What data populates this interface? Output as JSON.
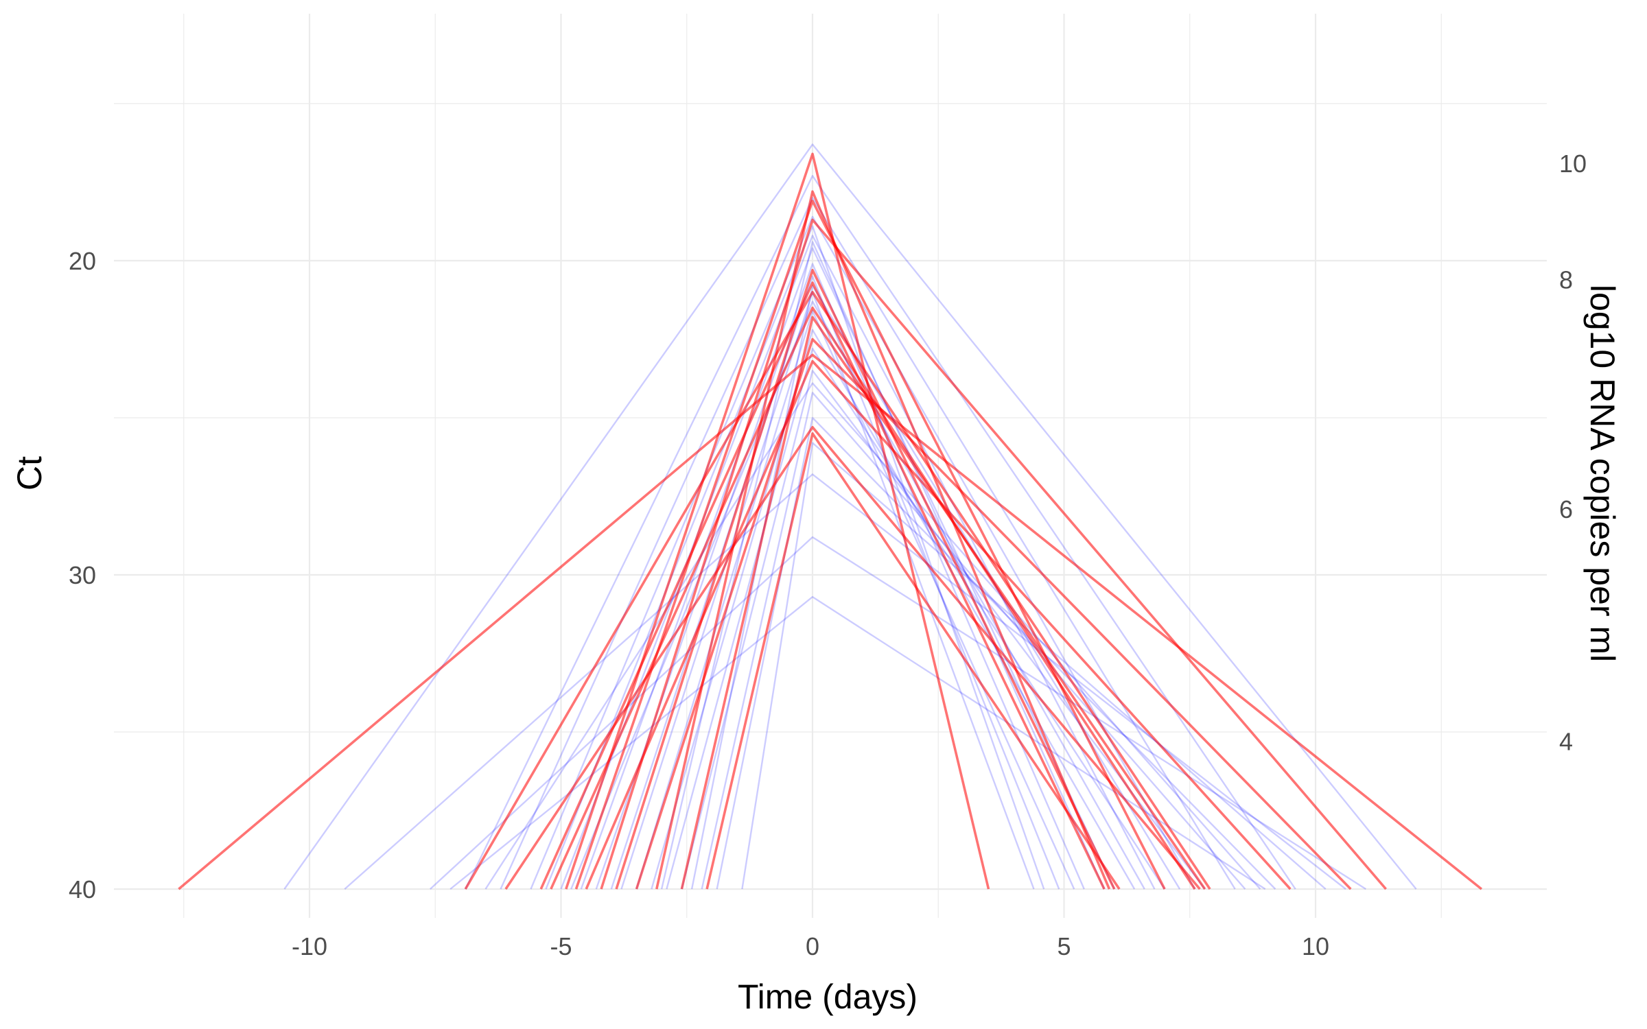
{
  "chart_data": {
    "type": "line",
    "xlabel": "Time (days)",
    "ylabel": "Ct",
    "y2label": "log10 RNA copies per ml",
    "xlim": [
      -13.3,
      14.2
    ],
    "ylim": [
      14.8,
      41
    ],
    "y_reversed": true,
    "x_ticks": [
      -10,
      -5,
      0,
      5,
      10
    ],
    "x_tick_labels": [
      "-10",
      "-5",
      "0",
      "5",
      "10"
    ],
    "y_ticks": [
      20,
      30,
      40
    ],
    "y_tick_labels": [
      "20",
      "30",
      "40"
    ],
    "y2_ticks": [
      10,
      8,
      6,
      4
    ],
    "y2_tick_labels": [
      "10",
      "8",
      "6",
      "4"
    ],
    "y2_ct_at_log10": {
      "10": 16.9,
      "8": 20.6,
      "6": 27.9,
      "4": 35.3
    },
    "grid": true,
    "colors": {
      "blue": "#0000ff",
      "red": "#ff0000",
      "grid": "#ebebeb"
    },
    "series": [
      {
        "group": "blue",
        "values": [
          [
            -10.5,
            40
          ],
          [
            0,
            16.3
          ],
          [
            12,
            40
          ]
        ]
      },
      {
        "group": "blue",
        "values": [
          [
            -9.3,
            40
          ],
          [
            0,
            26.8
          ],
          [
            10.6,
            40
          ]
        ]
      },
      {
        "group": "blue",
        "values": [
          [
            -7.6,
            40
          ],
          [
            0,
            28.8
          ],
          [
            11.0,
            40
          ]
        ]
      },
      {
        "group": "blue",
        "values": [
          [
            -7.2,
            40
          ],
          [
            0,
            30.7
          ],
          [
            9.0,
            40
          ]
        ]
      },
      {
        "group": "blue",
        "values": [
          [
            -6.9,
            40
          ],
          [
            0,
            17.3
          ],
          [
            9.6,
            40
          ]
        ]
      },
      {
        "group": "blue",
        "values": [
          [
            -6.2,
            40
          ],
          [
            0,
            18.0
          ],
          [
            8.4,
            40
          ]
        ]
      },
      {
        "group": "blue",
        "values": [
          [
            -5.6,
            40
          ],
          [
            0,
            18.6
          ],
          [
            7.6,
            40
          ]
        ]
      },
      {
        "group": "blue",
        "values": [
          [
            -5.0,
            40
          ],
          [
            0,
            19.2
          ],
          [
            6.8,
            40
          ]
        ]
      },
      {
        "group": "blue",
        "values": [
          [
            -4.6,
            40
          ],
          [
            0,
            19.6
          ],
          [
            6.0,
            40
          ]
        ]
      },
      {
        "group": "blue",
        "values": [
          [
            -4.3,
            40
          ],
          [
            0,
            20.1
          ],
          [
            5.4,
            40
          ]
        ]
      },
      {
        "group": "blue",
        "values": [
          [
            -4.0,
            40
          ],
          [
            0,
            20.5
          ],
          [
            4.9,
            40
          ]
        ]
      },
      {
        "group": "blue",
        "values": [
          [
            -3.8,
            40
          ],
          [
            0,
            21.0
          ],
          [
            4.4,
            40
          ]
        ]
      },
      {
        "group": "blue",
        "values": [
          [
            -3.5,
            40
          ],
          [
            0,
            21.6
          ],
          [
            5.2,
            40
          ]
        ]
      },
      {
        "group": "blue",
        "values": [
          [
            -3.2,
            40
          ],
          [
            0,
            22.2
          ],
          [
            6.4,
            40
          ]
        ]
      },
      {
        "group": "blue",
        "values": [
          [
            -2.9,
            40
          ],
          [
            0,
            22.8
          ],
          [
            7.0,
            40
          ]
        ]
      },
      {
        "group": "blue",
        "values": [
          [
            -2.6,
            40
          ],
          [
            0,
            23.5
          ],
          [
            7.8,
            40
          ]
        ]
      },
      {
        "group": "blue",
        "values": [
          [
            -2.2,
            40
          ],
          [
            0,
            24.2
          ],
          [
            8.6,
            40
          ]
        ]
      },
      {
        "group": "blue",
        "values": [
          [
            -1.9,
            40
          ],
          [
            0,
            25.0
          ],
          [
            9.2,
            40
          ]
        ]
      },
      {
        "group": "blue",
        "values": [
          [
            -1.4,
            40
          ],
          [
            0,
            25.8
          ],
          [
            10.2,
            40
          ]
        ]
      },
      {
        "group": "blue",
        "values": [
          [
            -5.3,
            40
          ],
          [
            0,
            18.9
          ],
          [
            4.6,
            40
          ]
        ]
      },
      {
        "group": "blue",
        "values": [
          [
            -3.0,
            40
          ],
          [
            0,
            19.4
          ],
          [
            5.8,
            40
          ]
        ]
      },
      {
        "group": "blue",
        "values": [
          [
            -4.8,
            40
          ],
          [
            0,
            21.3
          ],
          [
            6.6,
            40
          ]
        ]
      },
      {
        "group": "blue",
        "values": [
          [
            -2.4,
            40
          ],
          [
            0,
            20.8
          ],
          [
            7.3,
            40
          ]
        ]
      },
      {
        "group": "blue",
        "values": [
          [
            -6.5,
            40
          ],
          [
            0,
            23.9
          ],
          [
            8.9,
            40
          ]
        ]
      },
      {
        "group": "red",
        "values": [
          [
            -12.6,
            40
          ],
          [
            0,
            23.0
          ],
          [
            13.3,
            40
          ]
        ]
      },
      {
        "group": "red",
        "values": [
          [
            -6.9,
            40
          ],
          [
            0,
            21.0
          ],
          [
            7.9,
            40
          ]
        ]
      },
      {
        "group": "red",
        "values": [
          [
            -6.1,
            40
          ],
          [
            0,
            25.3
          ],
          [
            7.7,
            40
          ]
        ]
      },
      {
        "group": "red",
        "values": [
          [
            -5.2,
            40
          ],
          [
            0,
            21.5
          ],
          [
            7.6,
            40
          ]
        ]
      },
      {
        "group": "red",
        "values": [
          [
            -4.9,
            40
          ],
          [
            0,
            16.6
          ],
          [
            3.5,
            40
          ]
        ]
      },
      {
        "group": "red",
        "values": [
          [
            -4.5,
            40
          ],
          [
            0,
            23.2
          ],
          [
            9.5,
            40
          ]
        ]
      },
      {
        "group": "red",
        "values": [
          [
            -4.2,
            40
          ],
          [
            0,
            18.7
          ],
          [
            11.4,
            40
          ]
        ]
      },
      {
        "group": "red",
        "values": [
          [
            -3.9,
            40
          ],
          [
            0,
            20.3
          ],
          [
            6.0,
            40
          ]
        ]
      },
      {
        "group": "red",
        "values": [
          [
            -3.5,
            40
          ],
          [
            0,
            22.5
          ],
          [
            10.7,
            40
          ]
        ]
      },
      {
        "group": "red",
        "values": [
          [
            -3.1,
            40
          ],
          [
            0,
            17.8
          ],
          [
            5.9,
            40
          ]
        ]
      },
      {
        "group": "red",
        "values": [
          [
            -2.6,
            40
          ],
          [
            0,
            21.8
          ],
          [
            7.8,
            40
          ]
        ]
      },
      {
        "group": "red",
        "values": [
          [
            -2.1,
            40
          ],
          [
            0,
            25.5
          ],
          [
            6.1,
            40
          ]
        ]
      },
      {
        "group": "red",
        "values": [
          [
            -5.4,
            40
          ],
          [
            0,
            20.7
          ],
          [
            5.8,
            40
          ]
        ]
      },
      {
        "group": "red",
        "values": [
          [
            -4.7,
            40
          ],
          [
            0,
            18.1
          ],
          [
            7.0,
            40
          ]
        ]
      }
    ]
  }
}
